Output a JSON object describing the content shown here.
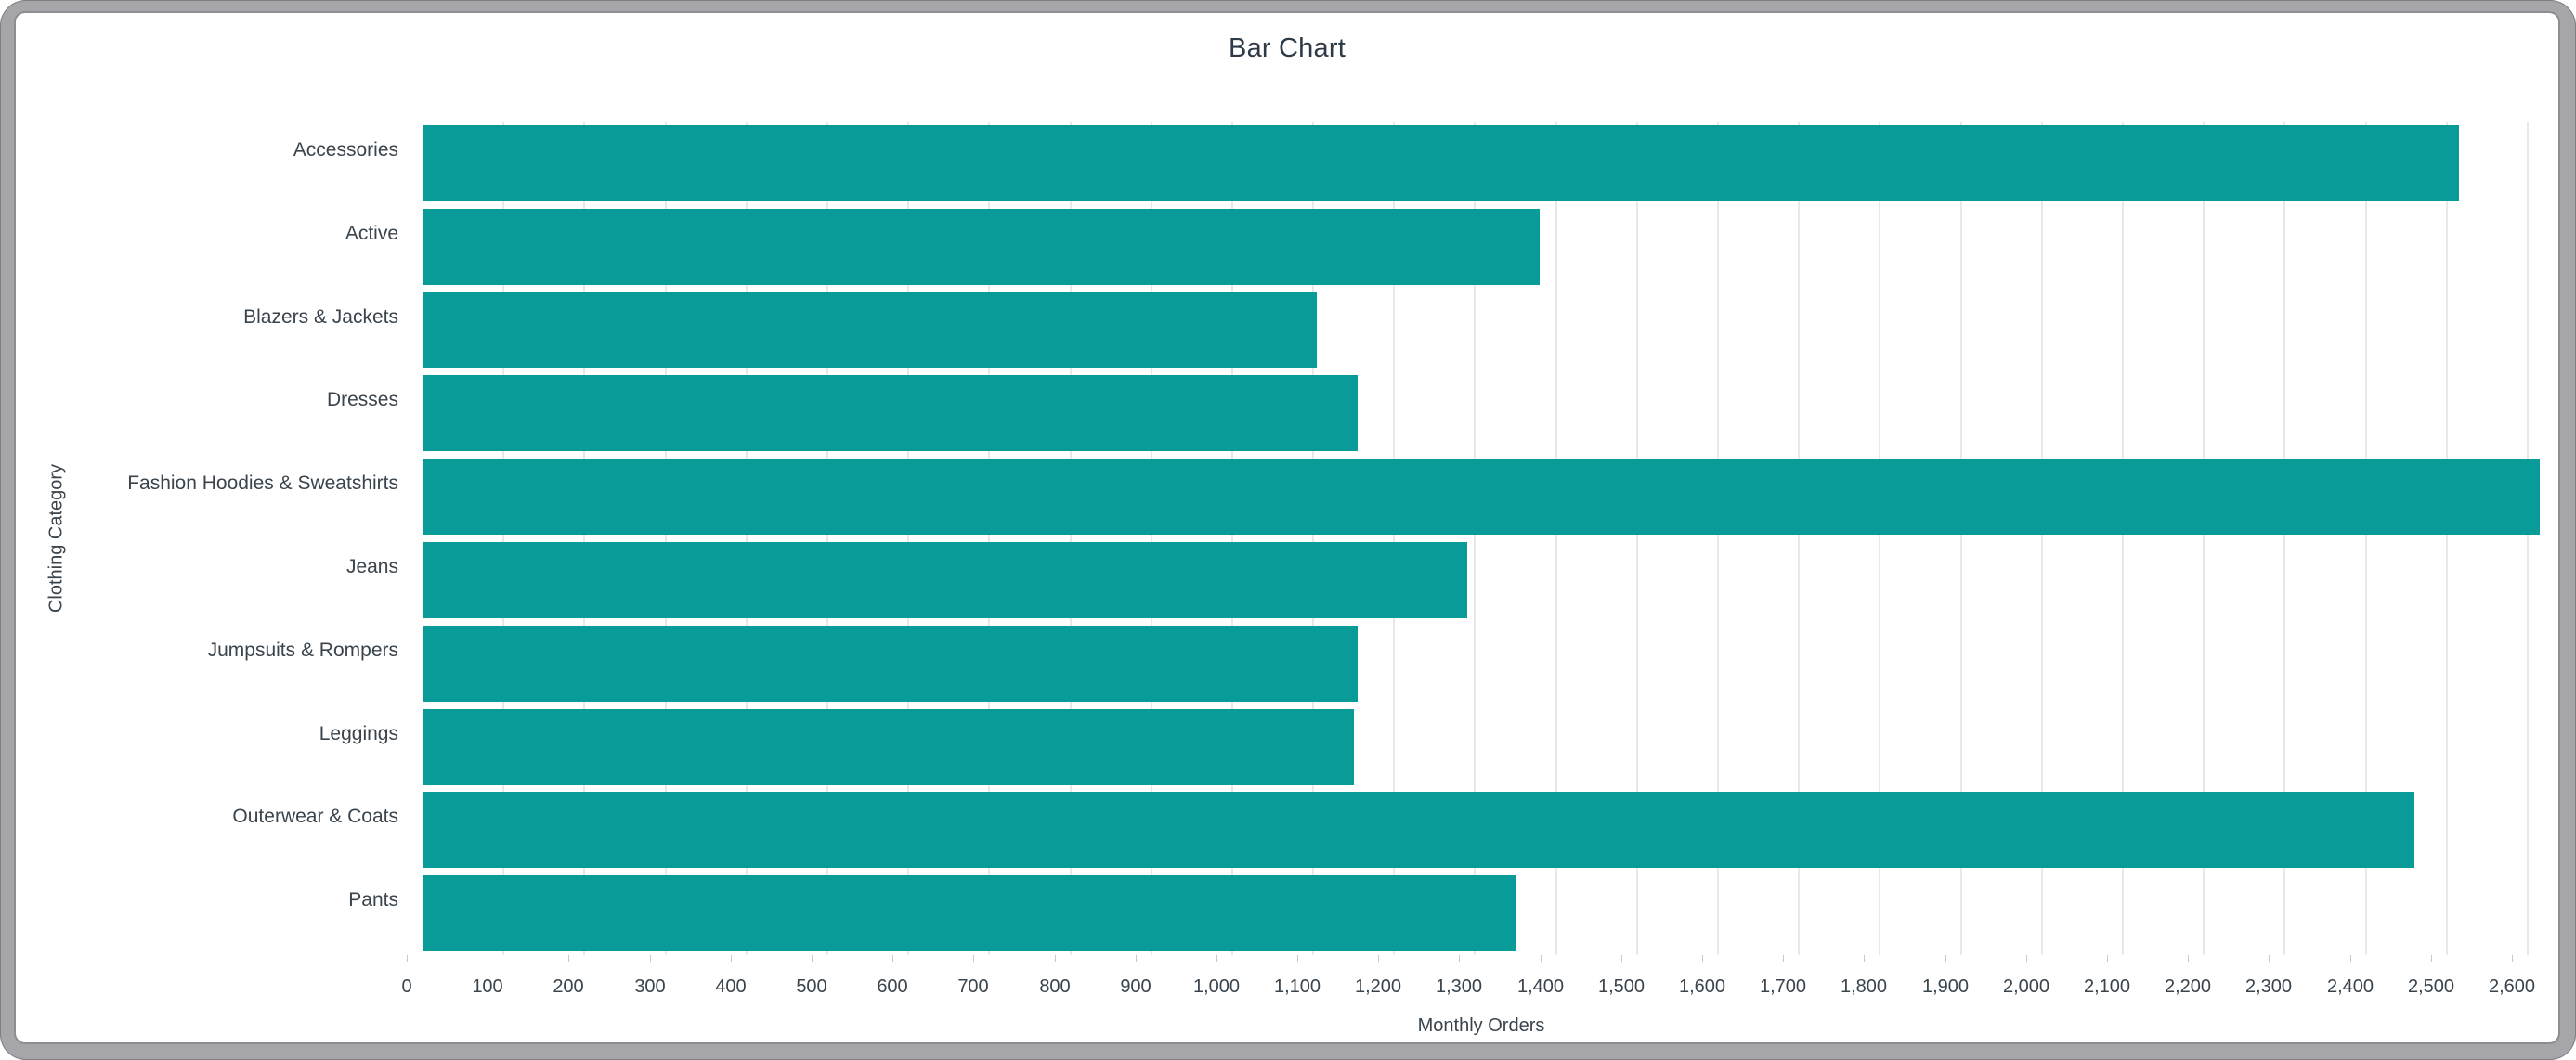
{
  "window": {
    "frame_color": "#a5a5aa",
    "card_color": "#ffffff"
  },
  "chart_data": {
    "type": "bar",
    "orientation": "horizontal",
    "title": "Bar Chart",
    "xlabel": "Monthly Orders",
    "ylabel": "Clothing Category",
    "categories": [
      "Accessories",
      "Active",
      "Blazers & Jackets",
      "Dresses",
      "Fashion Hoodies & Sweatshirts",
      "Jeans",
      "Jumpsuits & Rompers",
      "Leggings",
      "Outerwear & Coats",
      "Pants"
    ],
    "values": [
      2515,
      1380,
      1105,
      1155,
      2615,
      1290,
      1155,
      1150,
      2460,
      1350
    ],
    "bar_color": "#099b98",
    "xlim": [
      0,
      2615
    ],
    "x_ticks": [
      0,
      100,
      200,
      300,
      400,
      500,
      600,
      700,
      800,
      900,
      1000,
      1100,
      1200,
      1300,
      1400,
      1500,
      1600,
      1700,
      1800,
      1900,
      2000,
      2100,
      2200,
      2300,
      2400,
      2500,
      2600
    ],
    "x_tick_labels": [
      "0",
      "100",
      "200",
      "300",
      "400",
      "500",
      "600",
      "700",
      "800",
      "900",
      "1,000",
      "1,100",
      "1,200",
      "1,300",
      "1,400",
      "1,500",
      "1,600",
      "1,700",
      "1,800",
      "1,900",
      "2,000",
      "2,100",
      "2,200",
      "2,300",
      "2,400",
      "2,500",
      "2,600"
    ],
    "grid": true,
    "legend": "none"
  }
}
